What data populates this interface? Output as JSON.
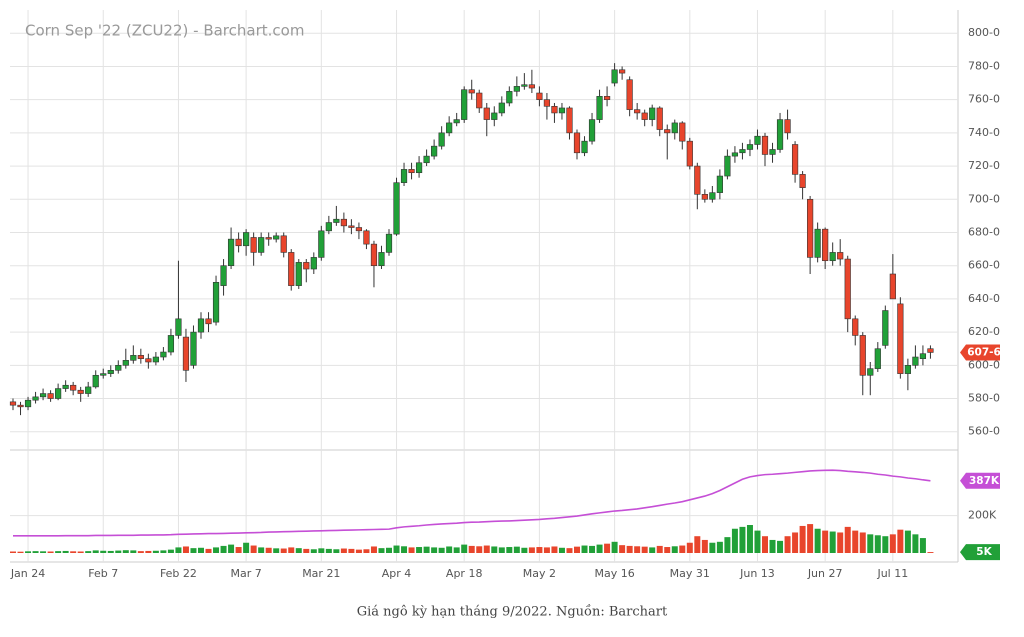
{
  "chart_data": {
    "type": "candlestick",
    "title": "Corn Sep '22 (ZCU22) - Barchart.com",
    "caption": "Giá ngô kỳ hạn tháng 9/2022. Nguồn: Barchart",
    "categories": [
      null,
      null,
      "Jan 24",
      null,
      null,
      null,
      null,
      null,
      null,
      null,
      null,
      null,
      "Feb 7",
      null,
      null,
      null,
      null,
      null,
      null,
      null,
      null,
      null,
      "Feb 22",
      null,
      null,
      null,
      null,
      null,
      null,
      null,
      null,
      "Mar 7",
      null,
      null,
      null,
      null,
      null,
      null,
      null,
      null,
      null,
      "Mar 21",
      null,
      null,
      null,
      null,
      null,
      null,
      null,
      null,
      null,
      "Apr 4",
      null,
      null,
      null,
      null,
      null,
      null,
      null,
      null,
      "Apr 18",
      null,
      null,
      null,
      null,
      null,
      null,
      null,
      null,
      null,
      "May 2",
      null,
      null,
      null,
      null,
      null,
      null,
      null,
      null,
      null,
      "May 16",
      null,
      null,
      null,
      null,
      null,
      null,
      null,
      null,
      null,
      "May 31",
      null,
      null,
      null,
      null,
      null,
      null,
      null,
      null,
      "Jun 13",
      null,
      null,
      null,
      null,
      null,
      null,
      null,
      null,
      "Jun 27",
      null,
      null,
      null,
      null,
      null,
      null,
      null,
      null,
      "Jul 11",
      null,
      null,
      null,
      null,
      null
    ],
    "ohlc": [
      [
        578,
        580,
        573,
        576
      ],
      [
        576,
        578,
        570,
        575
      ],
      [
        575,
        581,
        573,
        579
      ],
      [
        579,
        584,
        577,
        581
      ],
      [
        581,
        586,
        579,
        583
      ],
      [
        583,
        585,
        578,
        580
      ],
      [
        580,
        589,
        579,
        586
      ],
      [
        586,
        591,
        584,
        588
      ],
      [
        588,
        590,
        582,
        585
      ],
      [
        585,
        587,
        578,
        583
      ],
      [
        583,
        590,
        581,
        587
      ],
      [
        587,
        597,
        586,
        594
      ],
      [
        594,
        598,
        592,
        595
      ],
      [
        595,
        600,
        593,
        597
      ],
      [
        597,
        603,
        595,
        600
      ],
      [
        600,
        610,
        598,
        603
      ],
      [
        603,
        612,
        601,
        606
      ],
      [
        606,
        610,
        601,
        604
      ],
      [
        604,
        607,
        598,
        602
      ],
      [
        602,
        608,
        600,
        605
      ],
      [
        605,
        611,
        603,
        608
      ],
      [
        608,
        622,
        606,
        618
      ],
      [
        618,
        663,
        616,
        628
      ],
      [
        617,
        622,
        590,
        597
      ],
      [
        600,
        624,
        598,
        620
      ],
      [
        620,
        632,
        616,
        628
      ],
      [
        628,
        632,
        620,
        625
      ],
      [
        626,
        654,
        624,
        650
      ],
      [
        648,
        664,
        642,
        660
      ],
      [
        660,
        683,
        658,
        676
      ],
      [
        676,
        680,
        668,
        672
      ],
      [
        672,
        682,
        666,
        680
      ],
      [
        677,
        680,
        660,
        668
      ],
      [
        668,
        680,
        666,
        677
      ],
      [
        677,
        680,
        672,
        676
      ],
      [
        676,
        680,
        674,
        678
      ],
      [
        678,
        680,
        665,
        668
      ],
      [
        668,
        670,
        645,
        648
      ],
      [
        648,
        664,
        646,
        662
      ],
      [
        662,
        664,
        650,
        658
      ],
      [
        658,
        668,
        655,
        665
      ],
      [
        665,
        684,
        663,
        681
      ],
      [
        681,
        690,
        679,
        686
      ],
      [
        686,
        696,
        684,
        688
      ],
      [
        688,
        692,
        680,
        684
      ],
      [
        684,
        688,
        679,
        683
      ],
      [
        683,
        686,
        676,
        681
      ],
      [
        681,
        682,
        670,
        673
      ],
      [
        673,
        675,
        647,
        660
      ],
      [
        660,
        672,
        658,
        668
      ],
      [
        668,
        682,
        666,
        679
      ],
      [
        679,
        713,
        678,
        710
      ],
      [
        710,
        722,
        708,
        718
      ],
      [
        718,
        722,
        712,
        716
      ],
      [
        716,
        726,
        713,
        722
      ],
      [
        722,
        730,
        720,
        726
      ],
      [
        726,
        736,
        724,
        732
      ],
      [
        732,
        744,
        730,
        740
      ],
      [
        740,
        750,
        738,
        746
      ],
      [
        746,
        752,
        744,
        748
      ],
      [
        748,
        768,
        746,
        766
      ],
      [
        766,
        772,
        760,
        764
      ],
      [
        764,
        766,
        752,
        755
      ],
      [
        755,
        758,
        738,
        748
      ],
      [
        748,
        756,
        744,
        752
      ],
      [
        752,
        762,
        750,
        758
      ],
      [
        758,
        768,
        756,
        765
      ],
      [
        765,
        774,
        762,
        768
      ],
      [
        768,
        776,
        766,
        769
      ],
      [
        769,
        778,
        764,
        767
      ],
      [
        764,
        768,
        756,
        760
      ],
      [
        760,
        764,
        748,
        756
      ],
      [
        756,
        758,
        746,
        752
      ],
      [
        752,
        758,
        748,
        755
      ],
      [
        755,
        756,
        736,
        740
      ],
      [
        740,
        742,
        724,
        728
      ],
      [
        728,
        738,
        726,
        735
      ],
      [
        735,
        752,
        733,
        748
      ],
      [
        748,
        766,
        746,
        762
      ],
      [
        762,
        768,
        756,
        760
      ],
      [
        770,
        782,
        768,
        778
      ],
      [
        778,
        780,
        772,
        776
      ],
      [
        772,
        774,
        750,
        754
      ],
      [
        754,
        758,
        748,
        752
      ],
      [
        752,
        754,
        744,
        748
      ],
      [
        748,
        757,
        744,
        755
      ],
      [
        755,
        756,
        738,
        742
      ],
      [
        742,
        745,
        724,
        740
      ],
      [
        740,
        748,
        736,
        746
      ],
      [
        746,
        747,
        730,
        735
      ],
      [
        735,
        737,
        718,
        720
      ],
      [
        720,
        722,
        694,
        703
      ],
      [
        703,
        706,
        698,
        700
      ],
      [
        700,
        708,
        698,
        704
      ],
      [
        704,
        718,
        700,
        714
      ],
      [
        714,
        730,
        712,
        726
      ],
      [
        726,
        732,
        722,
        728
      ],
      [
        728,
        734,
        724,
        730
      ],
      [
        730,
        736,
        726,
        733
      ],
      [
        733,
        742,
        730,
        738
      ],
      [
        738,
        740,
        720,
        727
      ],
      [
        727,
        734,
        722,
        730
      ],
      [
        730,
        752,
        728,
        748
      ],
      [
        748,
        754,
        736,
        740
      ],
      [
        733,
        735,
        710,
        715
      ],
      [
        715,
        717,
        700,
        707
      ],
      [
        700,
        702,
        655,
        665
      ],
      [
        665,
        686,
        662,
        682
      ],
      [
        682,
        683,
        658,
        663
      ],
      [
        663,
        674,
        660,
        668
      ],
      [
        668,
        676,
        660,
        664
      ],
      [
        664,
        666,
        620,
        628
      ],
      [
        628,
        630,
        612,
        618
      ],
      [
        618,
        620,
        582,
        594
      ],
      [
        594,
        602,
        582,
        598
      ],
      [
        598,
        614,
        596,
        610
      ],
      [
        612,
        636,
        610,
        633
      ],
      [
        655,
        667,
        640,
        640
      ],
      [
        637,
        641,
        592,
        595
      ],
      [
        595,
        604,
        585,
        600
      ],
      [
        600,
        612,
        598,
        605
      ],
      [
        604,
        612,
        600,
        607
      ],
      [
        610,
        612,
        604,
        607.75
      ]
    ],
    "up_color": "#21a038",
    "down_color": "#e8452c",
    "last_price_label": "607-6",
    "ylim": [
      549,
      814
    ],
    "yticks": [
      {
        "value": 560,
        "label": "560-0"
      },
      {
        "value": 580,
        "label": "580-0"
      },
      {
        "value": 600,
        "label": "600-0"
      },
      {
        "value": 620,
        "label": "620-0"
      },
      {
        "value": 640,
        "label": "640-0"
      },
      {
        "value": 660,
        "label": "660-0"
      },
      {
        "value": 680,
        "label": "680-0"
      },
      {
        "value": 700,
        "label": "700-0"
      },
      {
        "value": 720,
        "label": "720-0"
      },
      {
        "value": 740,
        "label": "740-0"
      },
      {
        "value": 760,
        "label": "760-0"
      },
      {
        "value": 780,
        "label": "780-0"
      },
      {
        "value": 800,
        "label": "800-0"
      }
    ],
    "volume": [
      8,
      7,
      9,
      10,
      9,
      8,
      10,
      11,
      9,
      8,
      10,
      14,
      12,
      11,
      13,
      15,
      14,
      10,
      11,
      12,
      14,
      18,
      30,
      35,
      26,
      28,
      22,
      30,
      38,
      45,
      32,
      55,
      40,
      30,
      28,
      25,
      24,
      30,
      26,
      22,
      20,
      25,
      22,
      20,
      24,
      22,
      18,
      20,
      35,
      26,
      28,
      40,
      36,
      30,
      32,
      34,
      30,
      28,
      35,
      30,
      45,
      38,
      36,
      40,
      35,
      30,
      32,
      34,
      28,
      30,
      32,
      30,
      35,
      28,
      26,
      34,
      40,
      38,
      45,
      50,
      60,
      42,
      38,
      36,
      34,
      30,
      38,
      32,
      36,
      40,
      55,
      90,
      70,
      55,
      60,
      85,
      130,
      140,
      150,
      120,
      90,
      70,
      65,
      90,
      110,
      145,
      155,
      130,
      120,
      115,
      110,
      140,
      120,
      110,
      100,
      95,
      90,
      100,
      125,
      120,
      100,
      80,
      5
    ],
    "last_volume_label": "5K",
    "open_interest": [
      92,
      92,
      92,
      92,
      92,
      92,
      92,
      93,
      93,
      93,
      93,
      94,
      94,
      94,
      95,
      95,
      95,
      96,
      96,
      97,
      97,
      98,
      100,
      101,
      102,
      103,
      104,
      104,
      105,
      106,
      107,
      108,
      109,
      110,
      112,
      113,
      114,
      115,
      116,
      117,
      118,
      119,
      120,
      121,
      122,
      123,
      124,
      125,
      126,
      127,
      128,
      135,
      140,
      143,
      146,
      150,
      153,
      156,
      158,
      160,
      163,
      165,
      166,
      168,
      170,
      171,
      172,
      174,
      176,
      178,
      180,
      183,
      186,
      190,
      194,
      198,
      204,
      210,
      215,
      220,
      225,
      228,
      232,
      236,
      242,
      248,
      255,
      262,
      268,
      275,
      285,
      295,
      305,
      318,
      335,
      355,
      375,
      395,
      408,
      415,
      420,
      422,
      425,
      428,
      432,
      436,
      440,
      442,
      443,
      444,
      442,
      438,
      435,
      432,
      428,
      422,
      418,
      412,
      408,
      402,
      398,
      392,
      387
    ],
    "open_interest_color": "#c54fd6",
    "last_open_interest_label": "387K",
    "y2lim": [
      0,
      552
    ],
    "y2ticks": [
      {
        "value": 200,
        "label": "200K"
      }
    ],
    "grid": true
  }
}
